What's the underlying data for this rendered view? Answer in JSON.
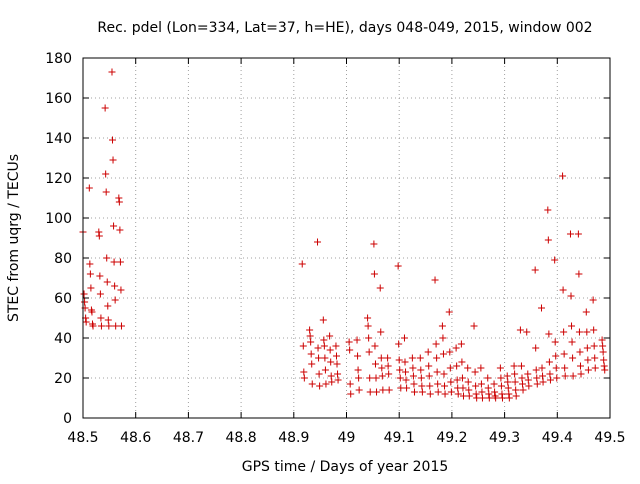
{
  "chart_data": {
    "type": "scatter",
    "title": "Rec. pdel (Lon=334, Lat=37, h=HE), days 048-049, 2015, window 002",
    "xlabel": "GPS time / Days of year 2015",
    "ylabel": "STEC from uqrg / TECUs",
    "xlim": [
      48.5,
      49.5
    ],
    "ylim": [
      0,
      180
    ],
    "x_ticks": [
      48.5,
      48.6,
      48.7,
      48.8,
      48.9,
      49.0,
      49.1,
      49.2,
      49.3,
      49.4,
      49.5
    ],
    "x_tick_labels": [
      "48.5",
      "48.6",
      "48.7",
      "48.8",
      "48.9",
      "49",
      "49.1",
      "49.2",
      "49.3",
      "49.4",
      "49.5"
    ],
    "y_ticks": [
      0,
      20,
      40,
      60,
      80,
      100,
      120,
      140,
      160,
      180
    ],
    "y_tick_labels": [
      "0",
      "20",
      "40",
      "60",
      "80",
      "100",
      "120",
      "140",
      "160",
      "180"
    ],
    "grid": true,
    "marker": "+",
    "marker_color": "#cc0000",
    "series": [
      {
        "name": "STEC",
        "points": [
          [
            48.5,
            93
          ],
          [
            48.502,
            62
          ],
          [
            48.503,
            58
          ],
          [
            48.504,
            55
          ],
          [
            48.505,
            50
          ],
          [
            48.506,
            48
          ],
          [
            48.512,
            115
          ],
          [
            48.513,
            77
          ],
          [
            48.514,
            72
          ],
          [
            48.515,
            65
          ],
          [
            48.516,
            54
          ],
          [
            48.517,
            53
          ],
          [
            48.518,
            47
          ],
          [
            48.519,
            46
          ],
          [
            48.53,
            93
          ],
          [
            48.531,
            91
          ],
          [
            48.532,
            71
          ],
          [
            48.533,
            62
          ],
          [
            48.534,
            50
          ],
          [
            48.535,
            46
          ],
          [
            48.542,
            155
          ],
          [
            48.543,
            122
          ],
          [
            48.544,
            113
          ],
          [
            48.545,
            80
          ],
          [
            48.546,
            68
          ],
          [
            48.547,
            56
          ],
          [
            48.548,
            49
          ],
          [
            48.549,
            46
          ],
          [
            48.555,
            173
          ],
          [
            48.556,
            139
          ],
          [
            48.557,
            129
          ],
          [
            48.558,
            96
          ],
          [
            48.559,
            78
          ],
          [
            48.56,
            66
          ],
          [
            48.561,
            59
          ],
          [
            48.562,
            46
          ],
          [
            48.568,
            110
          ],
          [
            48.569,
            108
          ],
          [
            48.57,
            94
          ],
          [
            48.571,
            78
          ],
          [
            48.572,
            64
          ],
          [
            48.573,
            46
          ],
          [
            48.916,
            77
          ],
          [
            48.918,
            36
          ],
          [
            48.919,
            23
          ],
          [
            48.92,
            20
          ],
          [
            48.93,
            44
          ],
          [
            48.931,
            41
          ],
          [
            48.932,
            38
          ],
          [
            48.933,
            32
          ],
          [
            48.934,
            27
          ],
          [
            48.935,
            17
          ],
          [
            48.945,
            88
          ],
          [
            48.946,
            35
          ],
          [
            48.947,
            30
          ],
          [
            48.948,
            22
          ],
          [
            48.949,
            16
          ],
          [
            48.956,
            49
          ],
          [
            48.957,
            39
          ],
          [
            48.958,
            36
          ],
          [
            48.959,
            30
          ],
          [
            48.96,
            24
          ],
          [
            48.961,
            17
          ],
          [
            48.968,
            41
          ],
          [
            48.969,
            34
          ],
          [
            48.97,
            28
          ],
          [
            48.971,
            21
          ],
          [
            48.972,
            18
          ],
          [
            48.98,
            36
          ],
          [
            48.981,
            31
          ],
          [
            48.982,
            27
          ],
          [
            48.983,
            22
          ],
          [
            48.984,
            19
          ],
          [
            49.005,
            38
          ],
          [
            49.006,
            34
          ],
          [
            49.007,
            17
          ],
          [
            49.008,
            12
          ],
          [
            49.02,
            39
          ],
          [
            49.021,
            31
          ],
          [
            49.022,
            24
          ],
          [
            49.023,
            20
          ],
          [
            49.024,
            14
          ],
          [
            49.04,
            50
          ],
          [
            49.041,
            46
          ],
          [
            49.042,
            40
          ],
          [
            49.043,
            33
          ],
          [
            49.044,
            20
          ],
          [
            49.045,
            13
          ],
          [
            49.052,
            87
          ],
          [
            49.053,
            72
          ],
          [
            49.054,
            36
          ],
          [
            49.055,
            27
          ],
          [
            49.056,
            20
          ],
          [
            49.057,
            13
          ],
          [
            49.064,
            65
          ],
          [
            49.065,
            43
          ],
          [
            49.066,
            30
          ],
          [
            49.067,
            25
          ],
          [
            49.068,
            21
          ],
          [
            49.069,
            14
          ],
          [
            49.078,
            30
          ],
          [
            49.079,
            26
          ],
          [
            49.08,
            22
          ],
          [
            49.081,
            14
          ],
          [
            49.098,
            76
          ],
          [
            49.099,
            37
          ],
          [
            49.1,
            29
          ],
          [
            49.101,
            24
          ],
          [
            49.102,
            20
          ],
          [
            49.103,
            15
          ],
          [
            49.11,
            40
          ],
          [
            49.111,
            28
          ],
          [
            49.112,
            23
          ],
          [
            49.113,
            19
          ],
          [
            49.114,
            15
          ],
          [
            49.125,
            30
          ],
          [
            49.126,
            25
          ],
          [
            49.127,
            21
          ],
          [
            49.128,
            17
          ],
          [
            49.129,
            13
          ],
          [
            49.14,
            30
          ],
          [
            49.141,
            24
          ],
          [
            49.142,
            20
          ],
          [
            49.143,
            16
          ],
          [
            49.144,
            13
          ],
          [
            49.155,
            33
          ],
          [
            49.156,
            26
          ],
          [
            49.157,
            21
          ],
          [
            49.158,
            16
          ],
          [
            49.159,
            12
          ],
          [
            49.168,
            69
          ],
          [
            49.17,
            37
          ],
          [
            49.171,
            30
          ],
          [
            49.172,
            23
          ],
          [
            49.173,
            17
          ],
          [
            49.174,
            13
          ],
          [
            49.182,
            46
          ],
          [
            49.183,
            40
          ],
          [
            49.184,
            32
          ],
          [
            49.185,
            22
          ],
          [
            49.186,
            16
          ],
          [
            49.187,
            12
          ],
          [
            49.195,
            53
          ],
          [
            49.196,
            33
          ],
          [
            49.197,
            25
          ],
          [
            49.198,
            18
          ],
          [
            49.199,
            13
          ],
          [
            49.208,
            35
          ],
          [
            49.209,
            26
          ],
          [
            49.21,
            19
          ],
          [
            49.211,
            15
          ],
          [
            49.212,
            12
          ],
          [
            49.218,
            37
          ],
          [
            49.219,
            28
          ],
          [
            49.22,
            20
          ],
          [
            49.221,
            15
          ],
          [
            49.222,
            11
          ],
          [
            49.23,
            25
          ],
          [
            49.231,
            18
          ],
          [
            49.232,
            14
          ],
          [
            49.233,
            11
          ],
          [
            49.242,
            46
          ],
          [
            49.244,
            23
          ],
          [
            49.245,
            16
          ],
          [
            49.246,
            12
          ],
          [
            49.247,
            10
          ],
          [
            49.255,
            25
          ],
          [
            49.256,
            17
          ],
          [
            49.257,
            13
          ],
          [
            49.258,
            10
          ],
          [
            49.268,
            20
          ],
          [
            49.269,
            15
          ],
          [
            49.27,
            12
          ],
          [
            49.271,
            10
          ],
          [
            49.28,
            17
          ],
          [
            49.281,
            13
          ],
          [
            49.282,
            11
          ],
          [
            49.283,
            10
          ],
          [
            49.292,
            25
          ],
          [
            49.293,
            20
          ],
          [
            49.294,
            16
          ],
          [
            49.295,
            12
          ],
          [
            49.296,
            10
          ],
          [
            49.305,
            21
          ],
          [
            49.306,
            18
          ],
          [
            49.307,
            15
          ],
          [
            49.308,
            12
          ],
          [
            49.309,
            10
          ],
          [
            49.318,
            26
          ],
          [
            49.319,
            22
          ],
          [
            49.32,
            18
          ],
          [
            49.321,
            14
          ],
          [
            49.322,
            11
          ],
          [
            49.33,
            44
          ],
          [
            49.332,
            26
          ],
          [
            49.333,
            20
          ],
          [
            49.334,
            17
          ],
          [
            49.335,
            14
          ],
          [
            49.342,
            43
          ],
          [
            49.344,
            22
          ],
          [
            49.345,
            19
          ],
          [
            49.346,
            16
          ],
          [
            49.358,
            74
          ],
          [
            49.359,
            35
          ],
          [
            49.36,
            24
          ],
          [
            49.361,
            20
          ],
          [
            49.362,
            17
          ],
          [
            49.37,
            55
          ],
          [
            49.371,
            25
          ],
          [
            49.372,
            21
          ],
          [
            49.373,
            18
          ],
          [
            49.382,
            104
          ],
          [
            49.383,
            89
          ],
          [
            49.384,
            42
          ],
          [
            49.385,
            28
          ],
          [
            49.386,
            22
          ],
          [
            49.387,
            19
          ],
          [
            49.395,
            79
          ],
          [
            49.396,
            38
          ],
          [
            49.397,
            31
          ],
          [
            49.398,
            25
          ],
          [
            49.399,
            20
          ],
          [
            49.41,
            121
          ],
          [
            49.411,
            64
          ],
          [
            49.412,
            43
          ],
          [
            49.413,
            32
          ],
          [
            49.414,
            25
          ],
          [
            49.415,
            21
          ],
          [
            49.425,
            92
          ],
          [
            49.426,
            61
          ],
          [
            49.427,
            46
          ],
          [
            49.428,
            38
          ],
          [
            49.429,
            30
          ],
          [
            49.43,
            21
          ],
          [
            49.44,
            92
          ],
          [
            49.441,
            72
          ],
          [
            49.442,
            43
          ],
          [
            49.443,
            33
          ],
          [
            49.444,
            26
          ],
          [
            49.445,
            22
          ],
          [
            49.455,
            53
          ],
          [
            49.456,
            43
          ],
          [
            49.457,
            35
          ],
          [
            49.458,
            29
          ],
          [
            49.459,
            24
          ],
          [
            49.468,
            59
          ],
          [
            49.469,
            44
          ],
          [
            49.47,
            36
          ],
          [
            49.471,
            30
          ],
          [
            49.472,
            25
          ],
          [
            49.485,
            39
          ],
          [
            49.486,
            36
          ],
          [
            49.487,
            33
          ],
          [
            49.488,
            29
          ],
          [
            49.489,
            26
          ],
          [
            49.49,
            24
          ]
        ]
      }
    ]
  }
}
